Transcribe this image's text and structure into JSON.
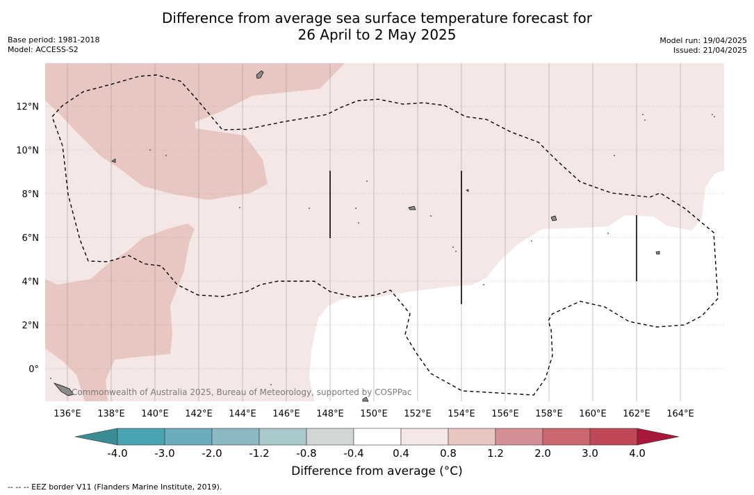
{
  "header": {
    "title_line1": "Difference from average sea surface temperature forecast for",
    "title_line2": "26 April to 2 May 2025",
    "base_period": "Base period: 1981-2018",
    "model": "Model: ACCESS-S2",
    "model_run": "Model run: 19/04/2025",
    "issued": "Issued: 21/04/2025"
  },
  "map": {
    "longitude_ticks": [
      "136°E",
      "138°E",
      "140°E",
      "142°E",
      "144°E",
      "146°E",
      "148°E",
      "150°E",
      "152°E",
      "154°E",
      "156°E",
      "158°E",
      "160°E",
      "162°E",
      "164°E"
    ],
    "latitude_ticks": [
      "12°N",
      "10°N",
      "8°N",
      "6°N",
      "4°N",
      "2°N",
      "0°"
    ],
    "attribution": "Commonwealth of Australia 2025, Bureau of Meteorology, supported by COSPPac"
  },
  "colorbar": {
    "label": "Difference from average (°C)",
    "tick_labels": [
      "-4.0",
      "-3.0",
      "-2.0",
      "-1.2",
      "-0.8",
      "-0.4",
      "0.4",
      "0.8",
      "1.2",
      "2.0",
      "3.0",
      "4.0"
    ],
    "colors": [
      "#3a8d95",
      "#4aa3b3",
      "#6aacbb",
      "#8ab8c3",
      "#a9c8cc",
      "#d2d6d6",
      "#ffffff",
      "#f5e7e6",
      "#e8c7c2",
      "#d68e95",
      "#c96670",
      "#bf4757",
      "#a8183a"
    ]
  },
  "footnote": "--  --  -- EEZ border V11 (Flanders Marine Institute, 2019)."
}
